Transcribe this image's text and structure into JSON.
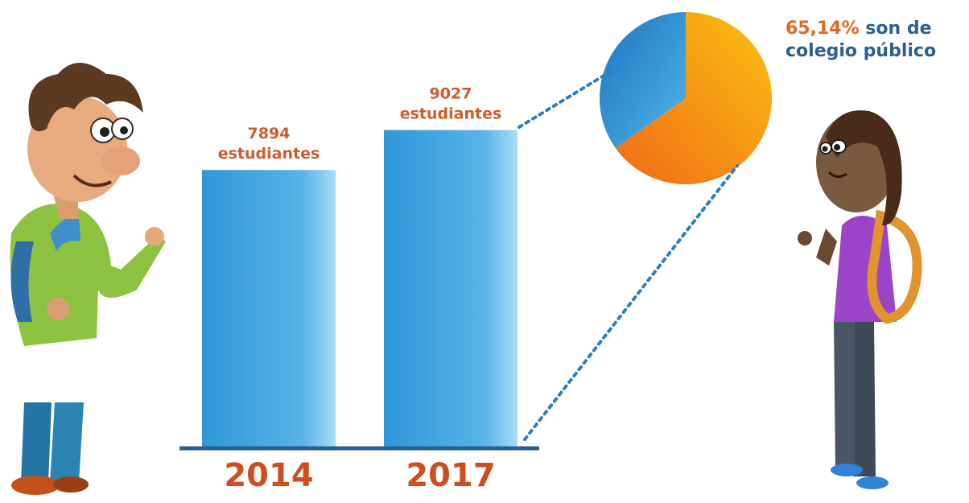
{
  "chart_data": [
    {
      "type": "bar",
      "categories": [
        "2014",
        "2017"
      ],
      "values": [
        7894,
        9027
      ],
      "value_labels": [
        "7894",
        "9027"
      ],
      "value_unit": "estudiantes",
      "ylim": [
        0,
        10000
      ],
      "grid": false,
      "colors": [
        "#2f97d9",
        "#8dd0f2"
      ]
    },
    {
      "type": "pie",
      "slices": [
        {
          "value": 65.14,
          "color": "#f27d1b"
        },
        {
          "value": 34.86,
          "color": "#2a8fd1"
        }
      ]
    }
  ],
  "pie_caption": {
    "percent": "65,14%",
    "line1_rest": " son de",
    "line2": "colegio público"
  },
  "colors": {
    "value_label": "#cf5b2a",
    "year_label": "#cf4e20",
    "dotted_line": "#2c7fc0",
    "baseline": "#2b5f8e"
  },
  "illustrations": [
    "student-boy-illustration",
    "student-girl-illustration"
  ]
}
